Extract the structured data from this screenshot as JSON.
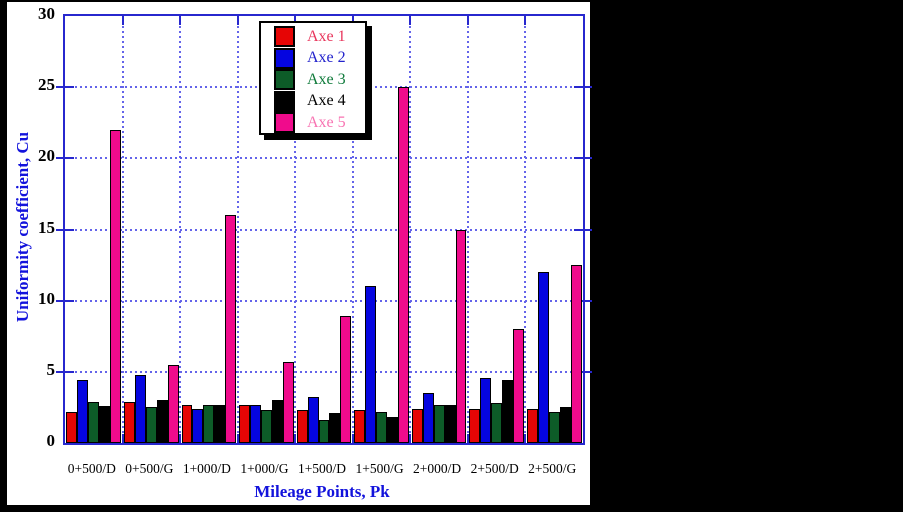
{
  "figure": {
    "outer_background": "#000000",
    "canvas_background": "#ffffff"
  },
  "colors": {
    "axis_frame": "#2727ce",
    "gridline": "#6464ea",
    "axis_title_text": "#1313dc",
    "tick_label_text": "#000000",
    "legend_border": "#000000",
    "legend_shadow": "#000000"
  },
  "chart_data": {
    "type": "bar",
    "title": "",
    "xlabel": "Mileage Points, Pk",
    "ylabel": "Uniformity coefficient, Cu",
    "ylim": [
      0,
      30
    ],
    "y_ticks": [
      0,
      5,
      10,
      15,
      20,
      25,
      30
    ],
    "grid": "dotted blue; horizontal at every 5 units, vertical at category boundaries",
    "legend_position": "inside plot, top, left-of-center",
    "categories": [
      "0+500/D",
      "0+500/G",
      "1+000/D",
      "1+000/G",
      "1+500/D",
      "1+500/G",
      "2+000/D",
      "2+500/D",
      "2+500/G"
    ],
    "series": [
      {
        "name": "Axe 1",
        "color": "#e60505",
        "label_color": "#e8365c",
        "values": [
          2.2,
          2.9,
          2.7,
          2.7,
          2.3,
          2.3,
          2.4,
          2.4,
          2.4
        ]
      },
      {
        "name": "Axe 2",
        "color": "#0505e0",
        "label_color": "#2222cc",
        "values": [
          4.4,
          4.8,
          2.4,
          2.7,
          3.2,
          11.0,
          3.5,
          4.6,
          12.0
        ]
      },
      {
        "name": "Axe 3",
        "color": "#0d5c28",
        "label_color": "#0e7a3a",
        "values": [
          2.9,
          2.5,
          2.7,
          2.3,
          1.6,
          2.2,
          2.7,
          2.8,
          2.2
        ]
      },
      {
        "name": "Axe 4",
        "color": "#000000",
        "label_color": "#000000",
        "values": [
          2.6,
          3.0,
          2.7,
          3.0,
          2.1,
          1.8,
          2.7,
          4.4,
          2.5
        ]
      },
      {
        "name": "Axe 5",
        "color": "#f00b8c",
        "label_color": "#f873b2",
        "values": [
          22.0,
          5.5,
          16.0,
          5.7,
          8.9,
          25.0,
          15.0,
          8.0,
          12.5
        ]
      }
    ]
  }
}
